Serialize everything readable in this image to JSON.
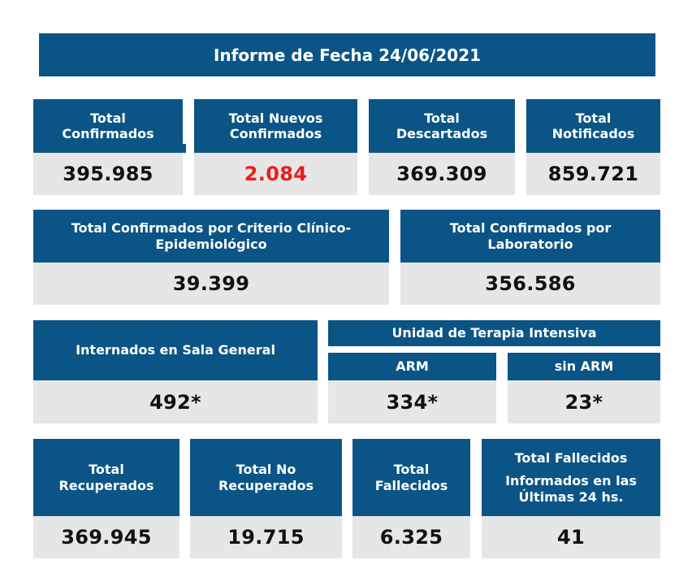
{
  "report": {
    "title": "Informe de Fecha 24/06/2021"
  },
  "row1": [
    {
      "label_line1": "Total",
      "label_line2": "Confirmados",
      "value": "395.985"
    },
    {
      "label_line1": "Total Nuevos",
      "label_line2": "Confirmados",
      "value": "2.084",
      "value_color": "#ee1c1c"
    },
    {
      "label_line1": "Total",
      "label_line2": "Descartados",
      "value": "369.309"
    },
    {
      "label_line1": "Total",
      "label_line2": "Notificados",
      "value": "859.721"
    }
  ],
  "row2": [
    {
      "label_line1": "Total Confirmados por Criterio Clínico-",
      "label_line2": "Epidemiológico",
      "value": "39.399"
    },
    {
      "label_line1": "Total Confirmados por",
      "label_line2": "Laboratorio",
      "value": "356.586"
    }
  ],
  "row3": {
    "sala_general": {
      "label": "Internados en Sala General",
      "value": "492*"
    },
    "uti": {
      "label": "Unidad de Terapia Intensiva",
      "arm": {
        "label": "ARM",
        "value": "334*"
      },
      "sin_arm": {
        "label": "sin ARM",
        "value": "23*"
      }
    }
  },
  "row4": [
    {
      "label_line1": "Total",
      "label_line2": "Recuperados",
      "value": "369.945"
    },
    {
      "label_line1": "Total No",
      "label_line2": "Recuperados",
      "value": "19.715"
    },
    {
      "label_line1": "Total",
      "label_line2": "Fallecidos",
      "value": "6.325"
    },
    {
      "label_line1": "Total Fallecidos",
      "label_line2": "Informados en las",
      "label_line3": "Últimas 24 hs.",
      "value": "41"
    }
  ],
  "colors": {
    "header_blue": "#0b5586",
    "value_gray": "#e6e6e6",
    "highlight_red": "#ee1c1c"
  }
}
